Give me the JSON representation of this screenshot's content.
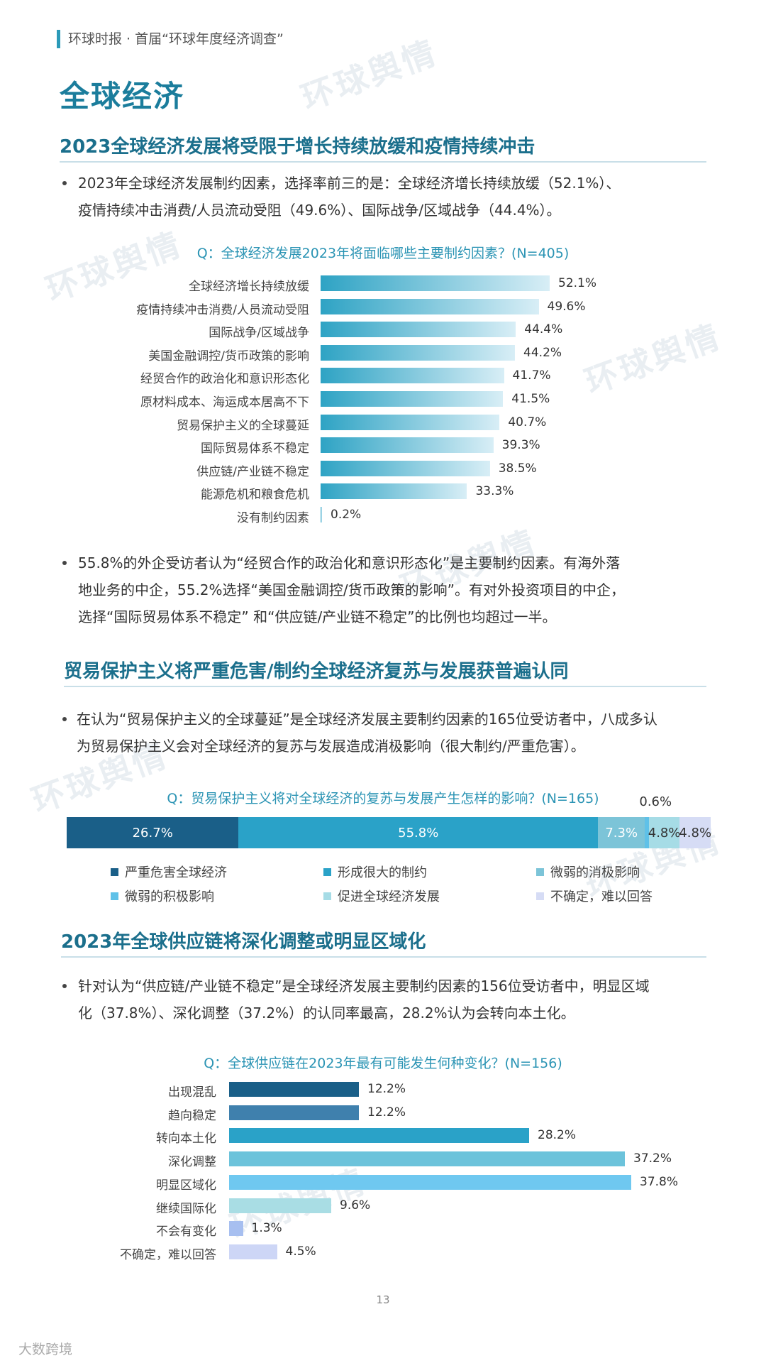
{
  "header": "环球时报 · 首届“环球年度经济调查”",
  "page_title": "全球经济",
  "watermark_text": "环球舆情",
  "sections": [
    {
      "title": "2023全球经济发展将受限于增长持续放缓和疫情持续冲击",
      "bullet_lines": [
        "2023年全球经济发展制约因素，选择率前三的是：全球经济增长持续放缓（52.1%）、",
        "疫情持续冲击消费/人员流动受阻（49.6%）、国际战争/区域战争（44.4%）。"
      ],
      "bullet2_lines": [
        "55.8%的外企受访者认为“经贸合作的政治化和意识形态化”是主要制约因素。有海外落",
        "地业务的中企，55.2%选择“美国金融调控/货币政策的影响”。有对外投资项目的中企，",
        "选择“国际贸易体系不稳定” 和“供应链/产业链不稳定”的比例也均超过一半。"
      ]
    },
    {
      "title": "贸易保护主义将严重危害/制约全球经济复苏与发展获普遍认同",
      "bullet_lines": [
        "在认为“贸易保护主义的全球蔓延”是全球经济发展主要制约因素的165位受访者中，八成多认",
        "为贸易保护主义会对全球经济的复苏与发展造成消极影响（很大制约/严重危害）。"
      ]
    },
    {
      "title": "2023年全球供应链将深化调整或明显区域化",
      "bullet_lines": [
        "针对认为“供应链/产业链不稳定”是全球经济发展主要制约因素的156位受访者中，明显区域",
        "化（37.8%）、深化调整（37.2%）的认同率最高，28.2%认为会转向本土化。"
      ]
    }
  ],
  "chart_data": [
    {
      "type": "bar",
      "orientation": "horizontal",
      "title": "Q：全球经济发展2023年将面临哪些主要制约因素？(N=405)",
      "categories": [
        "全球经济增长持续放缓",
        "疫情持续冲击消费/人员流动受阻",
        "国际战争/区域战争",
        "美国金融调控/货币政策的影响",
        "经贸合作的政治化和意识形态化",
        "原材料成本、海运成本居高不下",
        "贸易保护主义的全球蔓延",
        "国际贸易体系不稳定",
        "供应链/产业链不稳定",
        "能源危机和粮食危机",
        "没有制约因素"
      ],
      "values": [
        52.1,
        49.6,
        44.4,
        44.2,
        41.7,
        41.5,
        40.7,
        39.3,
        38.5,
        33.3,
        0.2
      ],
      "value_labels": [
        "52.1%",
        "49.6%",
        "44.4%",
        "44.2%",
        "41.7%",
        "41.5%",
        "40.7%",
        "39.3%",
        "38.5%",
        "33.3%",
        "0.2%"
      ],
      "colors": [
        "#2ea3c4",
        "#d8eef6"
      ]
    },
    {
      "type": "bar",
      "orientation": "stacked-horizontal",
      "title": "Q：贸易保护主义将对全球经济的复苏与发展产生怎样的影响？(N=165)",
      "series": [
        {
          "name": "严重危害全球经济",
          "value": 26.7,
          "label": "26.7%",
          "color": "#1a5f88"
        },
        {
          "name": "形成很大的制约",
          "value": 55.8,
          "label": "55.8%",
          "color": "#2aa2c8"
        },
        {
          "name": "微弱的消极影响",
          "value": 7.3,
          "label": "7.3%",
          "color": "#7cc4d8"
        },
        {
          "name": "微弱的积极影响",
          "value": 0.6,
          "label": "0.6%",
          "color": "#5fc1e8"
        },
        {
          "name": "促进全球经济发展",
          "value": 4.8,
          "label": "4.8%",
          "color": "#a6dce6"
        },
        {
          "name": "不确定，难以回答",
          "value": 4.8,
          "label": "4.8%",
          "color": "#d6dcf5"
        }
      ]
    },
    {
      "type": "bar",
      "orientation": "horizontal",
      "title": "Q：全球供应链在2023年最有可能发生何种变化？(N=156)",
      "categories": [
        "出现混乱",
        "趋向稳定",
        "转向本土化",
        "深化调整",
        "明显区域化",
        "继续国际化",
        "不会有变化",
        "不确定，难以回答"
      ],
      "values": [
        12.2,
        12.2,
        28.2,
        37.2,
        37.8,
        9.6,
        1.3,
        4.5
      ],
      "value_labels": [
        "12.2%",
        "12.2%",
        "28.2%",
        "37.2%",
        "37.8%",
        "9.6%",
        "1.3%",
        "4.5%"
      ],
      "colors": [
        "#1a5f88",
        "#3f80ad",
        "#2aa2c8",
        "#6cc3db",
        "#6fc8f0",
        "#a9dde4",
        "#a7bff0",
        "#cdd6f6"
      ]
    }
  ],
  "page_number": "13",
  "footer_brand": "大数跨境"
}
